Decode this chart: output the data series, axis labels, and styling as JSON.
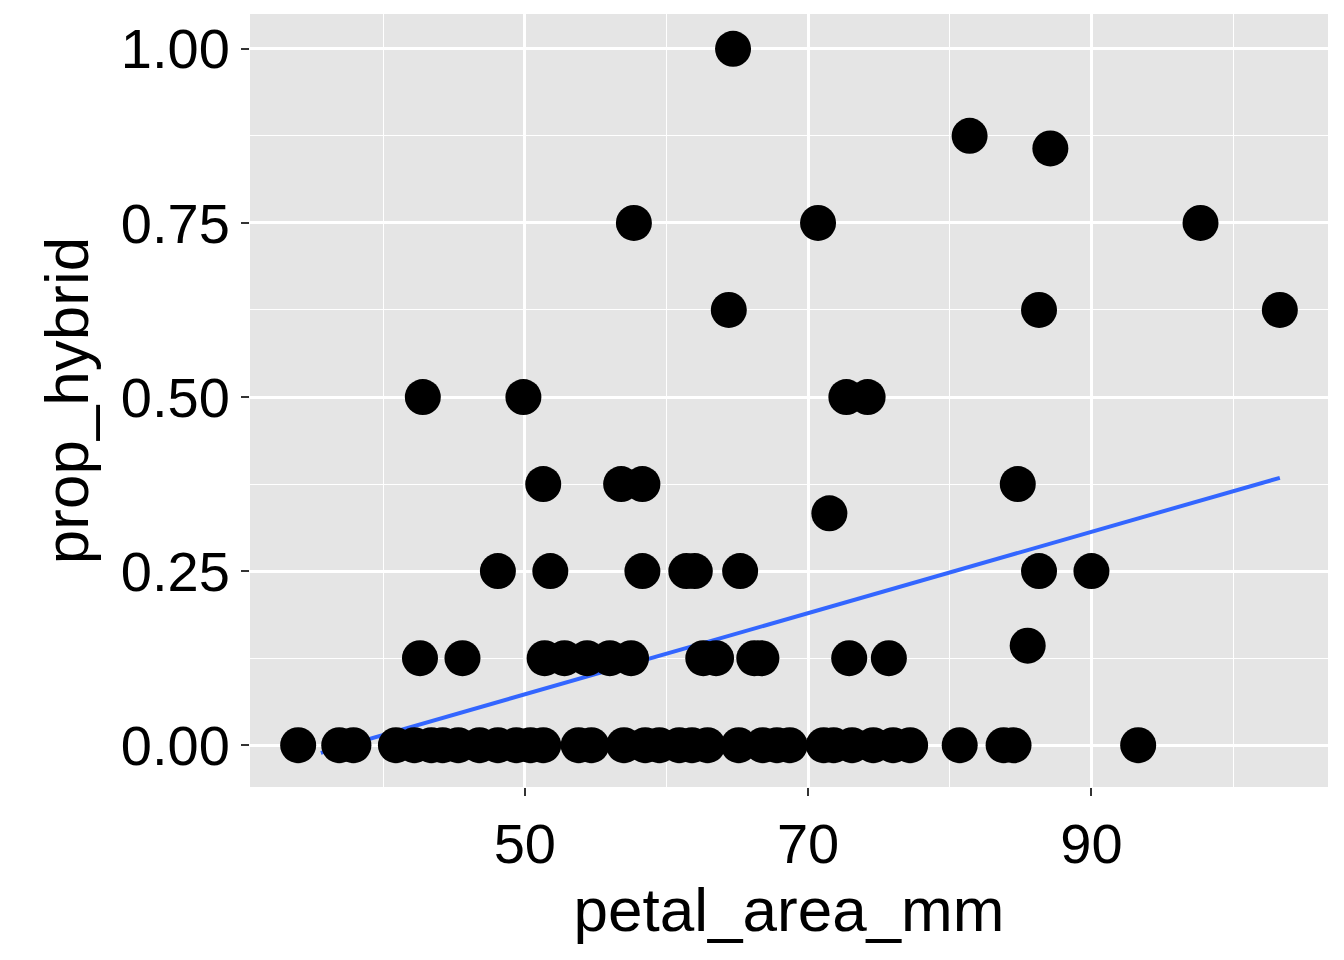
{
  "chart_data": {
    "type": "scatter",
    "xlabel": "petal_area_mm",
    "ylabel": "prop_hybrid",
    "xlim": [
      30.6,
      106.7
    ],
    "ylim": [
      -0.06,
      1.05
    ],
    "xticks": [
      50,
      70,
      90
    ],
    "yticks": [
      {
        "value": 0,
        "label": "0.00"
      },
      {
        "value": 0.25,
        "label": "0.25"
      },
      {
        "value": 0.5,
        "label": "0.50"
      },
      {
        "value": 0.75,
        "label": "0.75"
      },
      {
        "value": 1,
        "label": "1.00"
      }
    ],
    "grid": true,
    "series": [
      {
        "color": "#000000",
        "marker": "circle",
        "x": [
          64.7,
          81.4,
          87.1,
          57.7,
          70.7,
          97.7,
          64.4,
          86.3,
          103.3,
          42.8,
          49.9,
          72.7,
          74.2,
          51.3,
          56.8,
          58.3,
          84.8,
          71.5,
          48.1,
          51.8,
          58.3,
          61.4,
          62.0,
          65.2,
          86.3,
          90.0,
          85.5,
          42.6,
          45.6,
          51.4,
          52.8,
          54.4,
          56.0,
          57.5,
          62.6,
          63.5,
          66.2,
          66.7,
          72.9,
          75.7,
          34.0,
          36.9,
          37.9,
          40.9,
          42.2,
          43.4,
          44.2,
          45.3,
          46.8,
          48.1,
          49.4,
          50.4,
          51.3,
          53.8,
          54.7,
          57.0,
          58.5,
          59.5,
          60.9,
          61.8,
          62.9,
          65.1,
          66.8,
          67.8,
          68.7,
          71.1,
          71.8,
          73.1,
          74.6,
          76.0,
          77.2,
          80.7,
          83.8,
          84.5,
          93.3
        ],
        "values": [
          1.0,
          0.875,
          0.857,
          0.75,
          0.75,
          0.75,
          0.625,
          0.625,
          0.625,
          0.5,
          0.5,
          0.5,
          0.5,
          0.375,
          0.375,
          0.375,
          0.375,
          0.333,
          0.25,
          0.25,
          0.25,
          0.25,
          0.25,
          0.25,
          0.25,
          0.25,
          0.143,
          0.125,
          0.125,
          0.125,
          0.125,
          0.125,
          0.125,
          0.125,
          0.125,
          0.125,
          0.125,
          0.125,
          0.125,
          0.125,
          0,
          0,
          0,
          0,
          0,
          0,
          0,
          0,
          0,
          0,
          0,
          0,
          0,
          0,
          0,
          0,
          0,
          0,
          0,
          0,
          0,
          0,
          0,
          0,
          0,
          0,
          0,
          0,
          0,
          0,
          0,
          0,
          0,
          0,
          0
        ]
      },
      {
        "type": "line",
        "color": "#3366ff",
        "line_style": "solid",
        "x": [
          35.6,
          103.3
        ],
        "values": [
          -0.011,
          0.384
        ]
      }
    ]
  }
}
